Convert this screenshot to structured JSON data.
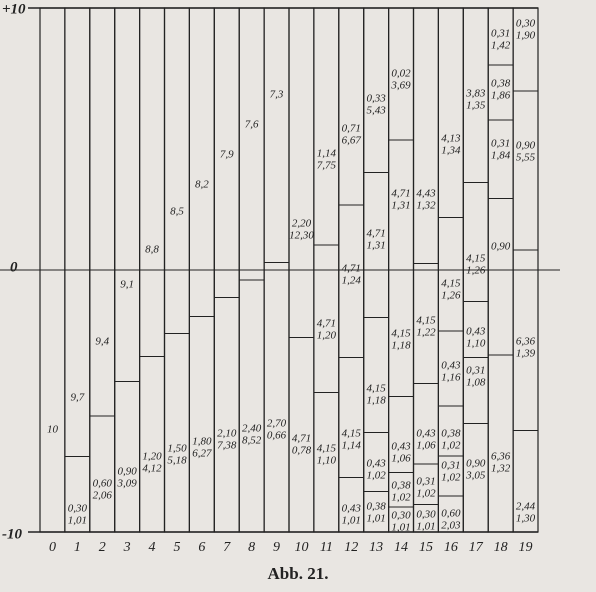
{
  "figure": {
    "y_axis_labels": [
      "+10",
      "0",
      "-10"
    ],
    "columns": [
      {
        "label": "0",
        "cells": [
          [
            "10"
          ]
        ]
      },
      {
        "label": "1",
        "cells": [
          [
            "9,7"
          ],
          [
            "0,30",
            "1,01"
          ]
        ]
      },
      {
        "label": "2",
        "cells": [
          [
            "9,4"
          ],
          [
            "0,60",
            "2,06"
          ]
        ]
      },
      {
        "label": "3",
        "cells": [
          [
            "9,1"
          ],
          [
            "0,90",
            "3,09"
          ]
        ]
      },
      {
        "label": "4",
        "cells": [
          [
            "8,8"
          ],
          [
            "1,20",
            "4,12"
          ]
        ]
      },
      {
        "label": "5",
        "cells": [
          [
            "8,5"
          ],
          [
            "1,50",
            "5,18"
          ]
        ]
      },
      {
        "label": "6",
        "cells": [
          [
            "8,2"
          ],
          [
            "1,80",
            "6,27"
          ]
        ]
      },
      {
        "label": "7",
        "cells": [
          [
            "7,9"
          ],
          [
            "2,10",
            "7,38"
          ]
        ]
      },
      {
        "label": "8",
        "cells": [
          [
            "7,6"
          ],
          [
            "2,40",
            "8,52"
          ]
        ]
      },
      {
        "label": "9",
        "cells": [
          [
            "7,3"
          ],
          [
            "2,70",
            "0,66"
          ]
        ]
      },
      {
        "label": "10",
        "cells": [
          [
            "2,20",
            "12,30"
          ],
          [
            "4,71",
            "0,78"
          ]
        ]
      },
      {
        "label": "11",
        "cells": [
          [
            "1,14",
            "7,75"
          ],
          [
            "4,71",
            "1,20"
          ],
          [
            "4,15",
            "1,10"
          ]
        ]
      },
      {
        "label": "12",
        "cells": [
          [
            "0,71",
            "6,67"
          ],
          [
            "4,71",
            "1,24"
          ],
          [
            "4,15",
            "1,14"
          ],
          [
            "0,43",
            "1,01"
          ]
        ]
      },
      {
        "label": "13",
        "cells": [
          [
            "0,33",
            "5,43"
          ],
          [
            "4,71",
            "1,31"
          ],
          [
            "4,15",
            "1,18"
          ],
          [
            "0,43",
            "1,02"
          ],
          [
            "0,38",
            "1,01"
          ]
        ]
      },
      {
        "label": "14",
        "cells": [
          [
            "0,02",
            "3,69"
          ],
          [
            "4,71",
            "1,31"
          ],
          [
            "4,15",
            "1,18"
          ],
          [
            "0,43",
            "1,06"
          ],
          [
            "0,38",
            "1,02"
          ],
          [
            "0,30",
            "1,01"
          ]
        ]
      },
      {
        "label": "15",
        "cells": [
          [
            "4,43",
            "1,32"
          ],
          [
            "4,15",
            "1,22"
          ],
          [
            "0,43",
            "1,06"
          ],
          [
            "0,31",
            "1,02"
          ],
          [
            "0,30",
            "1,01"
          ]
        ]
      },
      {
        "label": "16",
        "cells": [
          [
            "4,13",
            "1,34"
          ],
          [
            "4,15",
            "1,26"
          ],
          [
            "0,43",
            "1,16"
          ],
          [
            "0,38",
            "1,02"
          ],
          [
            "0,31",
            "1,02"
          ],
          [
            "0,60",
            "2,03"
          ]
        ]
      },
      {
        "label": "17",
        "cells": [
          [
            "3,83",
            "1,35"
          ],
          [
            "4,15",
            "1,26"
          ],
          [
            "0,43",
            "1,10"
          ],
          [
            "0,31",
            "1,08"
          ],
          [
            "0,90",
            "3,05"
          ]
        ]
      },
      {
        "label": "18",
        "cells": [
          [
            "0,31",
            "1,42"
          ],
          [
            "0,38",
            "1,86"
          ],
          [
            "0,31",
            "1,84"
          ],
          [
            "0,90"
          ],
          [
            "6,36",
            "1,32"
          ]
        ]
      },
      {
        "label": "19",
        "cells": [
          [
            "0,30",
            "1,90"
          ],
          [
            "0,90",
            "5,55"
          ],
          [
            "6,36",
            "1,39"
          ],
          [
            "2,44",
            "1,30"
          ]
        ]
      }
    ],
    "caption": "Abb. 21."
  }
}
